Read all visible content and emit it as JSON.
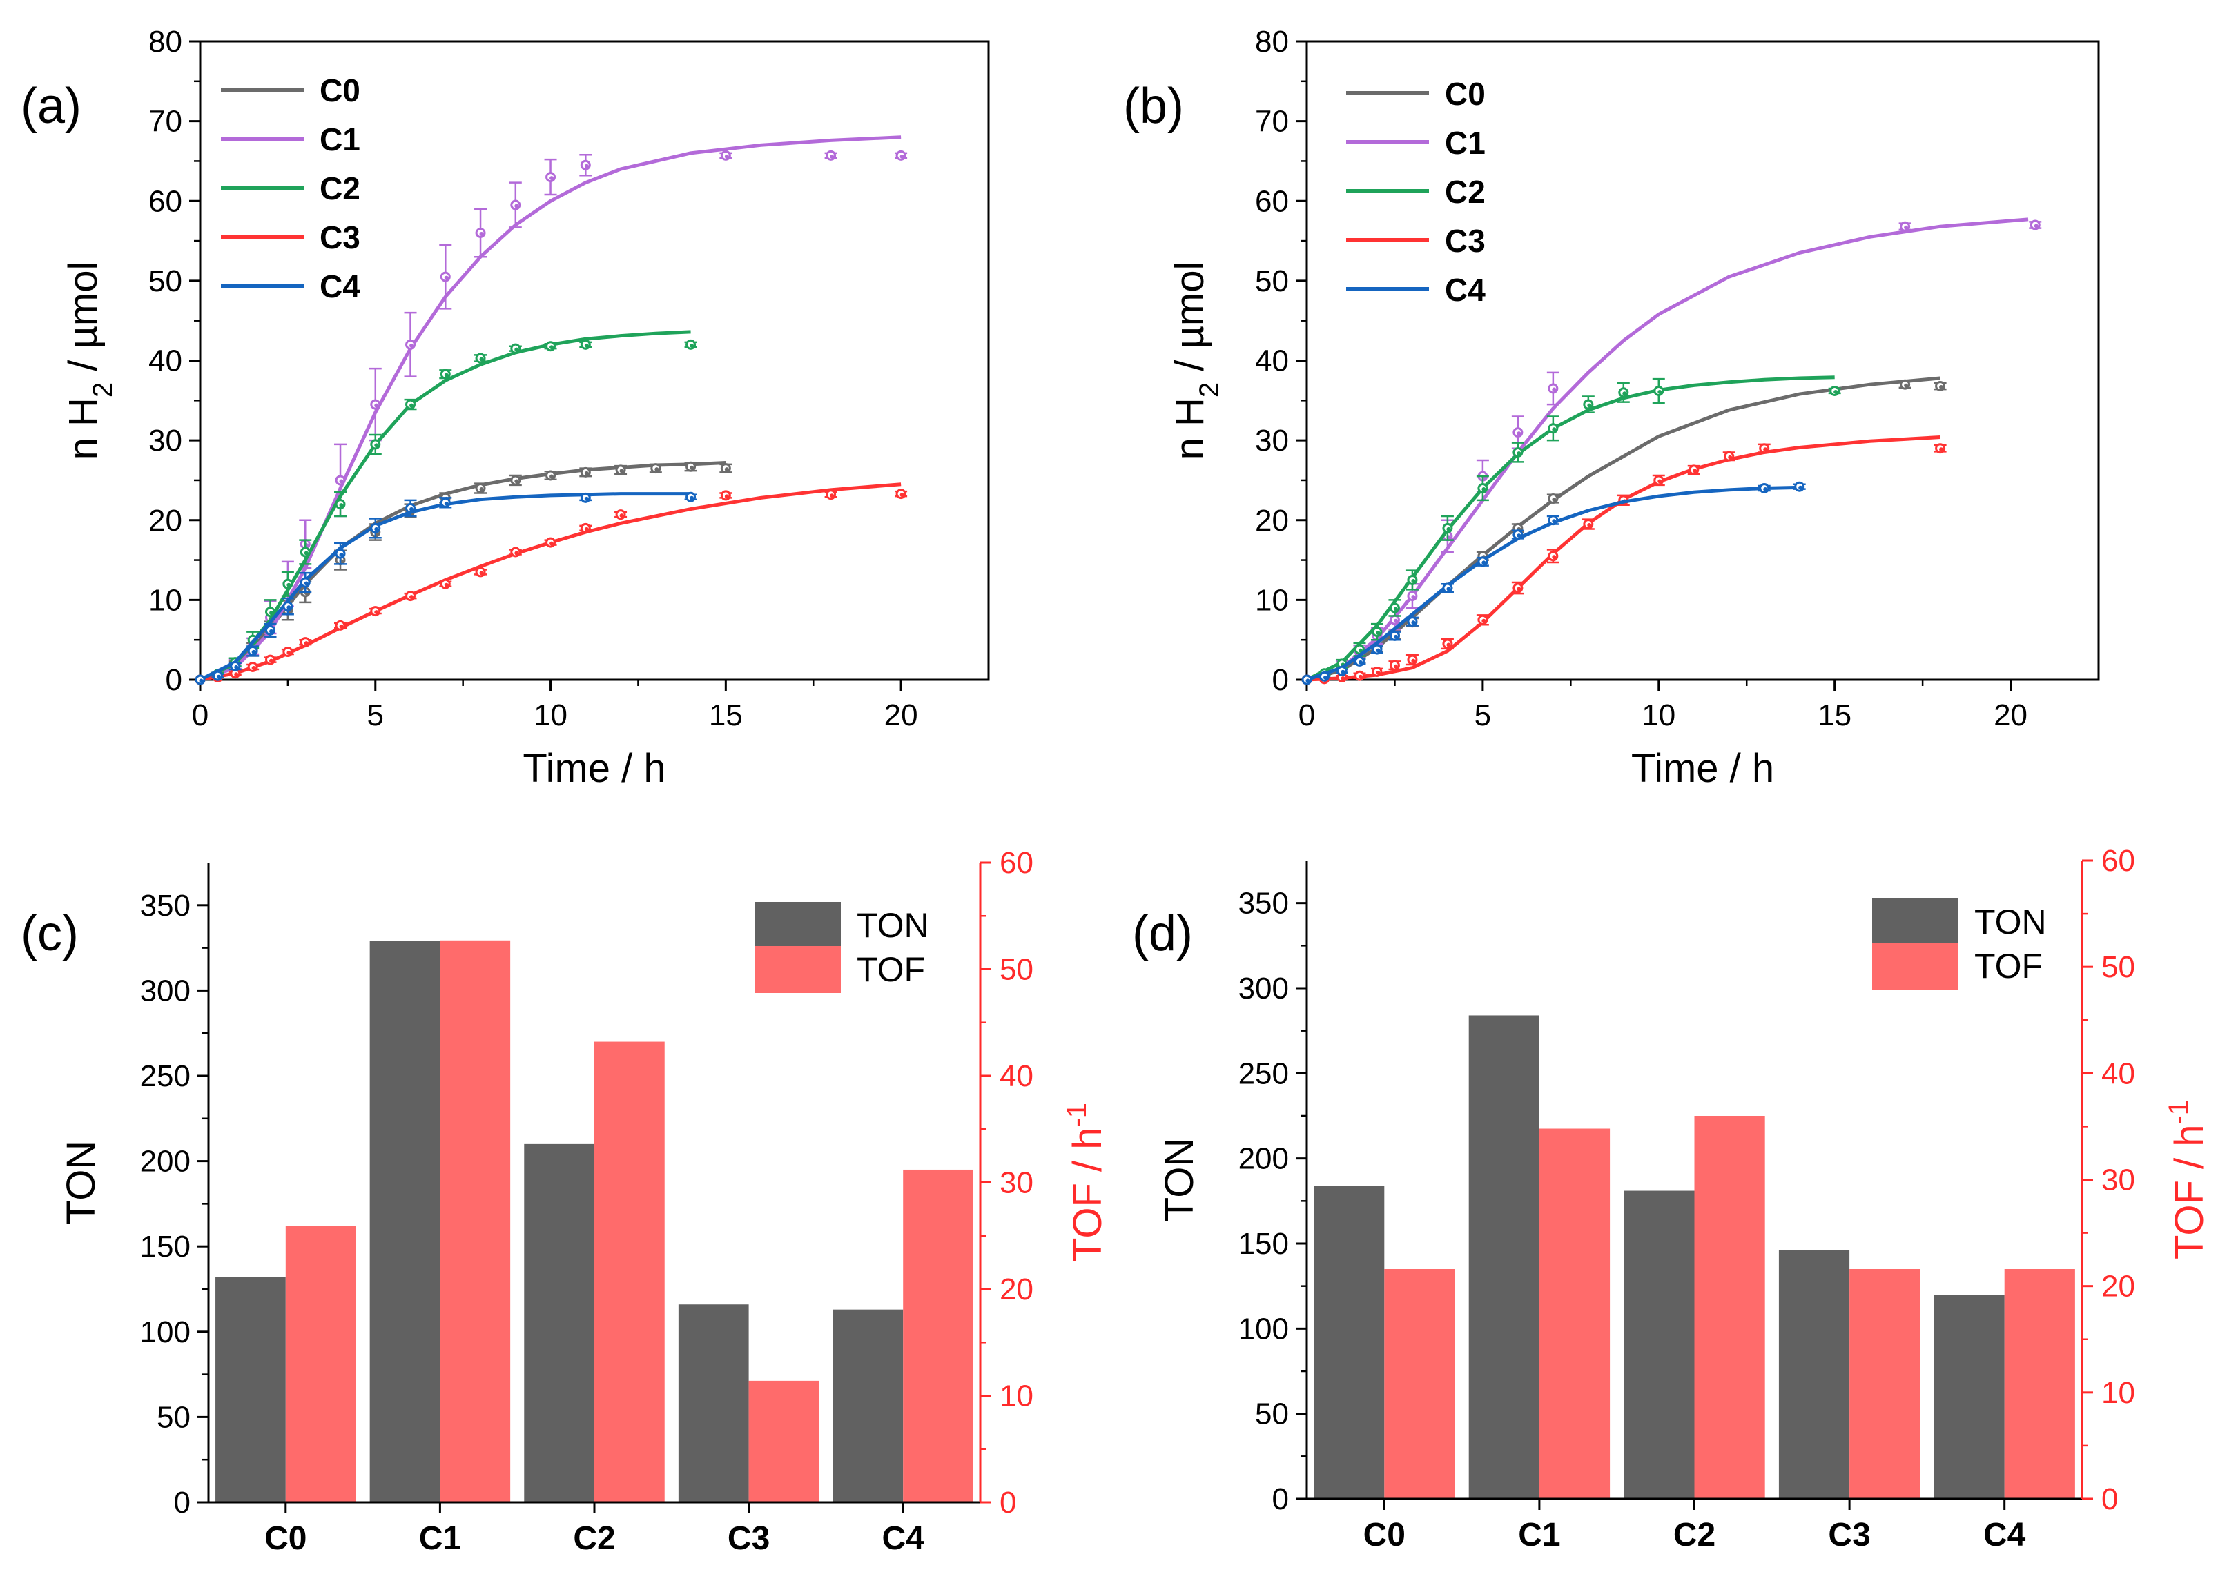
{
  "chart_data": [
    {
      "type": "line",
      "panel": "(a)",
      "title": "",
      "xlabel": "Time / h",
      "ylabel_main": "n H",
      "ylabel_sub": "2",
      "ylabel_rest": " / µmol",
      "xlim": [
        0,
        22.5
      ],
      "ylim": [
        0,
        80
      ],
      "xticks": [
        0,
        5,
        10,
        15,
        20
      ],
      "yticks": [
        0,
        10,
        20,
        30,
        40,
        50,
        60,
        70,
        80
      ],
      "grid": false,
      "legend": "top-left",
      "series": [
        {
          "name": "C0",
          "color": "#6b6b6b",
          "x": [
            0,
            0.5,
            1,
            1.5,
            2,
            2.5,
            3,
            4,
            5,
            6,
            7,
            8,
            9,
            10,
            11,
            12,
            13,
            14,
            15
          ],
          "y": [
            0,
            0.6,
            1.8,
            3.8,
            6.3,
            8.7,
            11.0,
            15.0,
            18.5,
            21.2,
            22.8,
            24.0,
            25.0,
            25.6,
            26.0,
            26.3,
            26.5,
            26.7,
            26.5
          ],
          "err": [
            0,
            0.2,
            0.5,
            0.8,
            1.0,
            1.2,
            1.3,
            1.2,
            1.0,
            0.8,
            0.6,
            0.6,
            0.6,
            0.5,
            0.5,
            0.5,
            0.5,
            0.5,
            0.5
          ],
          "fit_x": [
            0,
            1,
            2,
            3,
            4,
            5,
            6,
            7,
            8,
            9,
            10,
            11,
            12,
            13,
            14,
            15
          ],
          "fit_y": [
            0,
            2.0,
            6.5,
            12.0,
            16.5,
            19.6,
            21.8,
            23.3,
            24.4,
            25.2,
            25.8,
            26.3,
            26.6,
            26.9,
            27.0,
            27.2
          ]
        },
        {
          "name": "C1",
          "color": "#b36ad9",
          "x": [
            0,
            0.5,
            1,
            1.5,
            2,
            2.5,
            3,
            4,
            5,
            6,
            7,
            8,
            9,
            10,
            11,
            15,
            18,
            20
          ],
          "y": [
            0,
            0.6,
            2.0,
            4.2,
            7.8,
            12.0,
            17.0,
            25.0,
            34.5,
            42.0,
            50.5,
            56.0,
            59.5,
            63.0,
            64.5,
            65.7,
            65.7,
            65.7
          ],
          "err": [
            0,
            0.3,
            0.6,
            1.0,
            2.0,
            2.8,
            3.0,
            4.5,
            4.5,
            4.0,
            4.0,
            3.0,
            2.8,
            2.2,
            1.3,
            0.3,
            0.3,
            0.3
          ],
          "fit_x": [
            0,
            1,
            2,
            3,
            4,
            5,
            6,
            7,
            8,
            9,
            10,
            11,
            12,
            14,
            16,
            18,
            20
          ],
          "fit_y": [
            0,
            1.5,
            6.0,
            14.0,
            24.0,
            33.5,
            41.5,
            48.0,
            53.0,
            57.0,
            60.0,
            62.3,
            64.0,
            66.0,
            67.0,
            67.6,
            68.0
          ]
        },
        {
          "name": "C2",
          "color": "#1fa35a",
          "x": [
            0,
            0.5,
            1,
            1.5,
            2,
            2.5,
            3,
            4,
            5,
            6,
            7,
            8,
            9,
            10,
            11,
            14
          ],
          "y": [
            0,
            0.7,
            2.2,
            5.0,
            8.5,
            12.0,
            16.0,
            22.0,
            29.5,
            34.5,
            38.3,
            40.3,
            41.5,
            41.8,
            42.0,
            42.0
          ],
          "err": [
            0,
            0.2,
            0.5,
            1.0,
            1.5,
            1.5,
            1.5,
            1.5,
            1.2,
            0.6,
            0.5,
            0.4,
            0.3,
            0.3,
            0.3,
            0.3
          ],
          "fit_x": [
            0,
            1,
            2,
            3,
            4,
            5,
            6,
            7,
            8,
            9,
            10,
            11,
            12,
            13,
            14
          ],
          "fit_y": [
            0,
            2.0,
            7.5,
            15.0,
            23.0,
            29.5,
            34.5,
            37.5,
            39.5,
            41.0,
            42.0,
            42.7,
            43.1,
            43.4,
            43.6
          ]
        },
        {
          "name": "C3",
          "color": "#ff3333",
          "x": [
            0,
            0.5,
            1,
            1.5,
            2,
            2.5,
            3,
            4,
            5,
            6,
            7,
            8,
            9,
            10,
            11,
            12,
            15,
            18,
            20
          ],
          "y": [
            0,
            0.3,
            0.8,
            1.6,
            2.5,
            3.5,
            4.7,
            6.8,
            8.6,
            10.5,
            12.0,
            13.5,
            16.0,
            17.2,
            19.0,
            20.7,
            23.1,
            23.2,
            23.3
          ],
          "err": [
            0,
            0.1,
            0.2,
            0.3,
            0.3,
            0.3,
            0.3,
            0.3,
            0.3,
            0.3,
            0.3,
            0.3,
            0.3,
            0.3,
            0.3,
            0.3,
            0.3,
            0.3,
            0.3
          ],
          "fit_x": [
            0,
            1,
            2,
            3,
            4,
            5,
            6,
            7,
            8,
            9,
            10,
            11,
            12,
            14,
            16,
            18,
            20
          ],
          "fit_y": [
            0,
            0.8,
            2.3,
            4.3,
            6.5,
            8.6,
            10.6,
            12.5,
            14.2,
            15.8,
            17.2,
            18.5,
            19.6,
            21.4,
            22.8,
            23.8,
            24.5
          ]
        },
        {
          "name": "C4",
          "color": "#1565c0",
          "x": [
            0,
            0.5,
            1,
            1.5,
            2,
            2.5,
            3,
            4,
            5,
            6,
            7,
            11,
            14
          ],
          "y": [
            0,
            0.5,
            1.7,
            3.6,
            6.2,
            9.2,
            12.2,
            15.8,
            19.0,
            21.5,
            22.2,
            22.8,
            22.9
          ],
          "err": [
            0,
            0.2,
            0.4,
            0.6,
            0.8,
            1.0,
            1.2,
            1.3,
            1.2,
            1.0,
            0.6,
            0.3,
            0.3
          ],
          "fit_x": [
            0,
            1,
            2,
            3,
            4,
            5,
            6,
            7,
            8,
            9,
            10,
            11,
            12,
            13,
            14
          ],
          "fit_y": [
            0,
            2.2,
            7.2,
            12.5,
            16.5,
            19.3,
            21.0,
            22.0,
            22.6,
            22.9,
            23.1,
            23.2,
            23.3,
            23.3,
            23.3
          ]
        }
      ]
    },
    {
      "type": "line",
      "panel": "(b)",
      "title": "",
      "xlabel": "Time / h",
      "ylabel_main": "n H",
      "ylabel_sub": "2",
      "ylabel_rest": " / µmol",
      "xlim": [
        0,
        22.5
      ],
      "ylim": [
        0,
        80
      ],
      "xticks": [
        0,
        5,
        10,
        15,
        20
      ],
      "yticks": [
        0,
        10,
        20,
        30,
        40,
        50,
        60,
        70,
        80
      ],
      "grid": false,
      "legend": "top-left",
      "series": [
        {
          "name": "C0",
          "color": "#6b6b6b",
          "x": [
            0,
            0.5,
            1,
            1.5,
            2,
            2.5,
            3,
            4,
            5,
            6,
            7,
            17,
            18
          ],
          "y": [
            0,
            0.4,
            1.2,
            2.5,
            4.0,
            5.6,
            7.2,
            11.5,
            15.5,
            19.0,
            22.7,
            37.0,
            36.8
          ],
          "err": [
            0,
            0.1,
            0.3,
            0.4,
            0.5,
            0.5,
            0.5,
            0.5,
            0.5,
            0.5,
            0.5,
            0.4,
            0.4
          ],
          "fit_x": [
            0,
            1,
            2,
            3,
            4,
            5,
            6,
            7,
            8,
            10,
            12,
            14,
            16,
            18
          ],
          "fit_y": [
            0,
            1.2,
            4.0,
            7.8,
            11.8,
            15.6,
            19.2,
            22.5,
            25.5,
            30.5,
            33.8,
            35.8,
            37.0,
            37.8
          ]
        },
        {
          "name": "C1",
          "color": "#b36ad9",
          "x": [
            0,
            0.5,
            1,
            1.5,
            2,
            2.5,
            3,
            4,
            5,
            6,
            7,
            17,
            20.7
          ],
          "y": [
            0,
            0.6,
            1.8,
            3.5,
            5.5,
            7.5,
            10.5,
            18.0,
            25.5,
            31.0,
            36.5,
            56.8,
            57.0
          ],
          "err": [
            0,
            0.2,
            0.5,
            0.8,
            1.0,
            1.2,
            1.5,
            2.0,
            2.0,
            2.0,
            2.0,
            0.4,
            0.4
          ],
          "fit_x": [
            0,
            1,
            2,
            3,
            4,
            5,
            6,
            7,
            8,
            9,
            10,
            12,
            14,
            16,
            18,
            20.5
          ],
          "fit_y": [
            0,
            1.5,
            5.2,
            10.5,
            16.5,
            22.5,
            28.5,
            34.0,
            38.5,
            42.5,
            45.8,
            50.5,
            53.5,
            55.5,
            56.8,
            57.7
          ]
        },
        {
          "name": "C2",
          "color": "#1fa35a",
          "x": [
            0,
            0.5,
            1,
            1.5,
            2,
            2.5,
            3,
            4,
            5,
            6,
            7,
            8,
            9,
            10,
            15
          ],
          "y": [
            0,
            0.8,
            2.0,
            3.8,
            6.0,
            9.0,
            12.5,
            19.0,
            24.0,
            28.5,
            31.5,
            34.5,
            36.0,
            36.2,
            36.2
          ],
          "err": [
            0,
            0.2,
            0.5,
            0.8,
            1.0,
            1.0,
            1.2,
            1.5,
            1.5,
            1.2,
            1.5,
            1.0,
            1.2,
            1.5,
            0.3
          ],
          "fit_x": [
            0,
            1,
            2,
            3,
            4,
            5,
            6,
            7,
            8,
            9,
            10,
            11,
            12,
            13,
            14,
            15
          ],
          "fit_y": [
            0,
            2.2,
            6.8,
            12.8,
            18.8,
            24.0,
            28.3,
            31.5,
            33.8,
            35.3,
            36.3,
            36.9,
            37.3,
            37.6,
            37.8,
            37.9
          ]
        },
        {
          "name": "C3",
          "color": "#ff3333",
          "x": [
            0,
            0.5,
            1,
            1.5,
            2,
            2.5,
            3,
            4,
            5,
            6,
            7,
            8,
            9,
            10,
            11,
            12,
            13,
            18
          ],
          "y": [
            0,
            0.1,
            0.3,
            0.5,
            1.0,
            1.8,
            2.5,
            4.5,
            7.5,
            11.5,
            15.5,
            19.5,
            22.5,
            25.0,
            26.3,
            28.0,
            29.0,
            29.0
          ],
          "err": [
            0,
            0.1,
            0.2,
            0.3,
            0.4,
            0.5,
            0.6,
            0.6,
            0.6,
            0.7,
            0.8,
            0.6,
            0.6,
            0.6,
            0.5,
            0.5,
            0.5,
            0.4
          ],
          "fit_x": [
            0,
            1,
            2,
            3,
            4,
            5,
            6,
            7,
            8,
            9,
            10,
            11,
            12,
            13,
            14,
            16,
            18
          ],
          "fit_y": [
            0,
            0.2,
            0.6,
            1.5,
            3.6,
            7.2,
            11.5,
            15.8,
            19.6,
            22.6,
            24.8,
            26.4,
            27.6,
            28.5,
            29.1,
            29.9,
            30.4
          ]
        },
        {
          "name": "C4",
          "color": "#1565c0",
          "x": [
            0,
            0.5,
            1,
            1.5,
            2,
            2.5,
            3,
            4,
            5,
            6,
            7,
            13,
            14
          ],
          "y": [
            0,
            0.4,
            1.1,
            2.3,
            3.8,
            5.5,
            7.3,
            11.5,
            14.8,
            18.2,
            20.0,
            24.0,
            24.2
          ],
          "err": [
            0,
            0.1,
            0.2,
            0.3,
            0.4,
            0.5,
            0.5,
            0.5,
            0.5,
            0.5,
            0.5,
            0.3,
            0.3
          ],
          "fit_x": [
            0,
            1,
            2,
            3,
            4,
            5,
            6,
            7,
            8,
            9,
            10,
            11,
            12,
            13,
            14
          ],
          "fit_y": [
            0,
            1.5,
            4.6,
            8.2,
            11.8,
            15.0,
            17.7,
            19.7,
            21.2,
            22.3,
            23.0,
            23.5,
            23.8,
            24.0,
            24.1
          ]
        }
      ]
    },
    {
      "type": "bar",
      "panel": "(c)",
      "title": "",
      "xlabel": "",
      "ylabel": "TON",
      "y2label_main": "TOF / h",
      "y2label_sup": "-1",
      "categories": [
        "C0",
        "C1",
        "C2",
        "C3",
        "C4"
      ],
      "ylim": [
        0,
        375
      ],
      "yticks": [
        0,
        50,
        100,
        150,
        200,
        250,
        300,
        350
      ],
      "y2lim": [
        0,
        60
      ],
      "y2ticks": [
        0,
        10,
        20,
        30,
        40,
        50,
        60
      ],
      "legend": "top-right",
      "series": [
        {
          "name": "TON",
          "axis": "left",
          "color": "#616161",
          "values": [
            132,
            329,
            210,
            116,
            113
          ]
        },
        {
          "name": "TOF",
          "axis": "right",
          "color": "#ff6b6b",
          "values": [
            25.9,
            52.7,
            43.2,
            11.4,
            31.2
          ]
        }
      ]
    },
    {
      "type": "bar",
      "panel": "(d)",
      "title": "",
      "xlabel": "",
      "ylabel": "TON",
      "y2label_main": "TOF / h",
      "y2label_sup": "-1",
      "categories": [
        "C0",
        "C1",
        "C2",
        "C3",
        "C4"
      ],
      "ylim": [
        0,
        375
      ],
      "yticks": [
        0,
        50,
        100,
        150,
        200,
        250,
        300,
        350
      ],
      "y2lim": [
        0,
        60
      ],
      "y2ticks": [
        0,
        10,
        20,
        30,
        40,
        50,
        60
      ],
      "legend": "top-right",
      "series": [
        {
          "name": "TON",
          "axis": "left",
          "color": "#616161",
          "values": [
            184,
            284,
            181,
            146,
            120
          ]
        },
        {
          "name": "TOF",
          "axis": "right",
          "color": "#ff6b6b",
          "values": [
            21.6,
            34.8,
            36.0,
            21.6,
            21.6
          ]
        }
      ]
    }
  ]
}
